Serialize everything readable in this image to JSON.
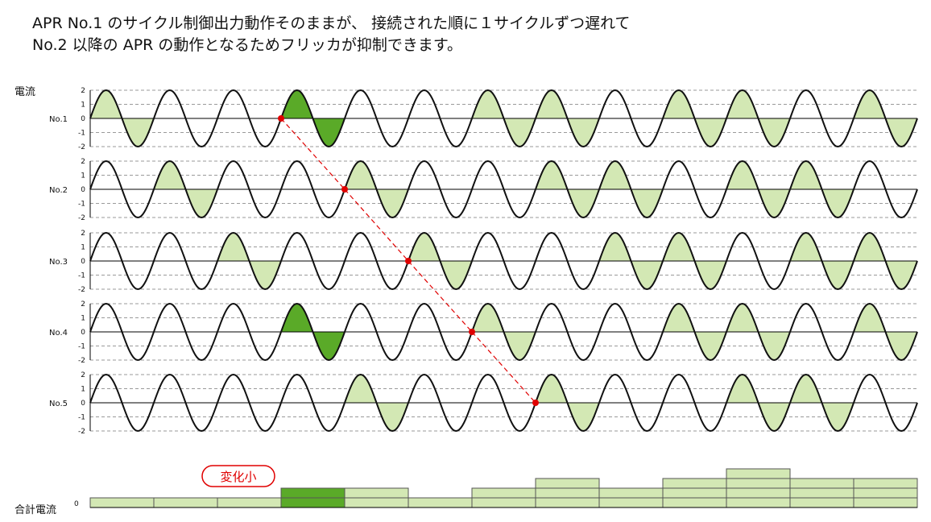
{
  "headline": {
    "line1": "APR No.1 のサイクル制御出力動作そのままが、 接続された順に１サイクルずつ遅れて",
    "line2": "No.2 以降の APR の動作となるためフリッカが抑制できます。"
  },
  "current_label": "電流",
  "total_label": "合計電流",
  "total_zero_tick": "0",
  "change_label": "変化小",
  "colors": {
    "light_fill": "#d3e8b4",
    "dark_fill": "#5aaa28",
    "wave": "#111111",
    "red": "#e00000",
    "grid": "#9a9a9a"
  },
  "chart_data": {
    "type": "line",
    "cycles": 13,
    "ylim": [
      -2,
      2
    ],
    "yticks": [
      "2",
      "1",
      "0",
      "-1",
      "-2"
    ],
    "series": [
      {
        "name": "No.1",
        "on_cycles": [
          0,
          3,
          6,
          7,
          9,
          10,
          12
        ],
        "highlight_cycles": [
          3
        ],
        "marker_cycle": 3
      },
      {
        "name": "No.2",
        "on_cycles": [
          1,
          4,
          7,
          8,
          10,
          11
        ],
        "highlight_cycles": [],
        "marker_cycle": 4
      },
      {
        "name": "No.3",
        "on_cycles": [
          2,
          5,
          8,
          9,
          11,
          12
        ],
        "highlight_cycles": [],
        "marker_cycle": 5
      },
      {
        "name": "No.4",
        "on_cycles": [
          3,
          6,
          9,
          10,
          12
        ],
        "highlight_cycles": [
          3
        ],
        "marker_cycle": 6
      },
      {
        "name": "No.5",
        "on_cycles": [
          4,
          7,
          10,
          11
        ],
        "highlight_cycles": [],
        "marker_cycle": 7
      }
    ],
    "total": {
      "values": [
        1,
        1,
        1,
        2,
        2,
        1,
        2,
        3,
        2,
        3,
        4,
        3,
        3
      ],
      "highlight_cycles": [
        3
      ]
    }
  }
}
